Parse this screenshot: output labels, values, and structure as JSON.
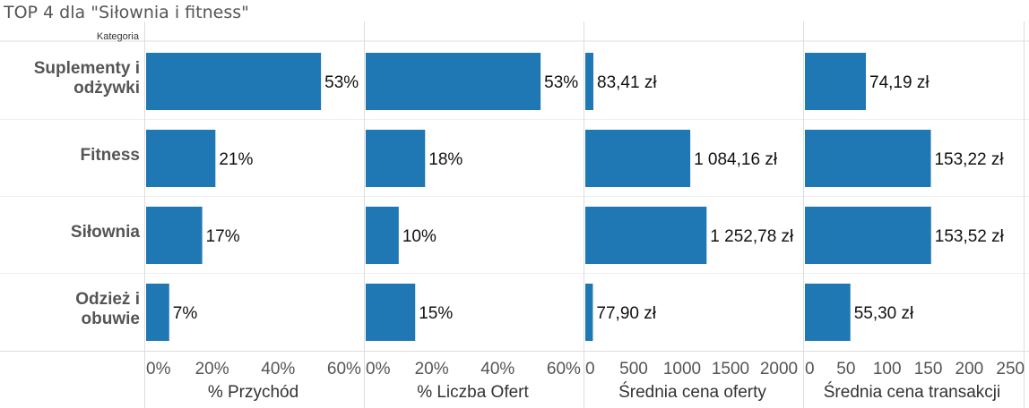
{
  "title": "TOP 4 dla \"Siłownia i fitness\"",
  "chart_data": {
    "type": "bar",
    "orientation": "horizontal",
    "row_header": "Kategoria",
    "categories": [
      [
        "Suplementy i",
        "odżywki"
      ],
      [
        "Fitness"
      ],
      [
        "Siłownia"
      ],
      [
        "Odzież i",
        "obuwie"
      ]
    ],
    "bar_color": "#1f77b4",
    "grid": true,
    "panels": [
      {
        "xlabel": "% Przychód",
        "xlim": [
          0,
          0.66
        ],
        "ticks": [
          0,
          0.2,
          0.4,
          0.6
        ],
        "tick_labels": [
          "0%",
          "20%",
          "40%",
          "60%"
        ],
        "values": [
          0.53,
          0.21,
          0.17,
          0.07
        ],
        "labels": [
          "53%",
          "21%",
          "17%",
          "7%"
        ]
      },
      {
        "xlabel": "% Liczba Ofert",
        "xlim": [
          0,
          0.66
        ],
        "ticks": [
          0,
          0.2,
          0.4,
          0.6
        ],
        "tick_labels": [
          "0%",
          "20%",
          "40%",
          "60%"
        ],
        "values": [
          0.53,
          0.18,
          0.1,
          0.15
        ],
        "labels": [
          "53%",
          "18%",
          "10%",
          "15%"
        ]
      },
      {
        "xlabel": "Średnia cena oferty",
        "xlim": [
          0,
          2250
        ],
        "ticks": [
          0,
          500,
          1000,
          1500,
          2000
        ],
        "tick_labels": [
          "0",
          "500",
          "1000",
          "1500",
          "2000"
        ],
        "values": [
          83.41,
          1084.16,
          1252.78,
          77.9
        ],
        "labels": [
          "83,41 zł",
          "1 084,16 zł",
          "1 252,78 zł",
          "77,90 zł"
        ]
      },
      {
        "xlabel": "Średnia cena transakcji",
        "xlim": [
          0,
          265
        ],
        "ticks": [
          0,
          50,
          100,
          150,
          200,
          250
        ],
        "tick_labels": [
          "0",
          "50",
          "100",
          "150",
          "200",
          "250"
        ],
        "values": [
          74.19,
          153.22,
          153.52,
          55.3
        ],
        "labels": [
          "74,19 zł",
          "153,22 zł",
          "153,52 zł",
          "55,30 zł"
        ]
      }
    ]
  }
}
